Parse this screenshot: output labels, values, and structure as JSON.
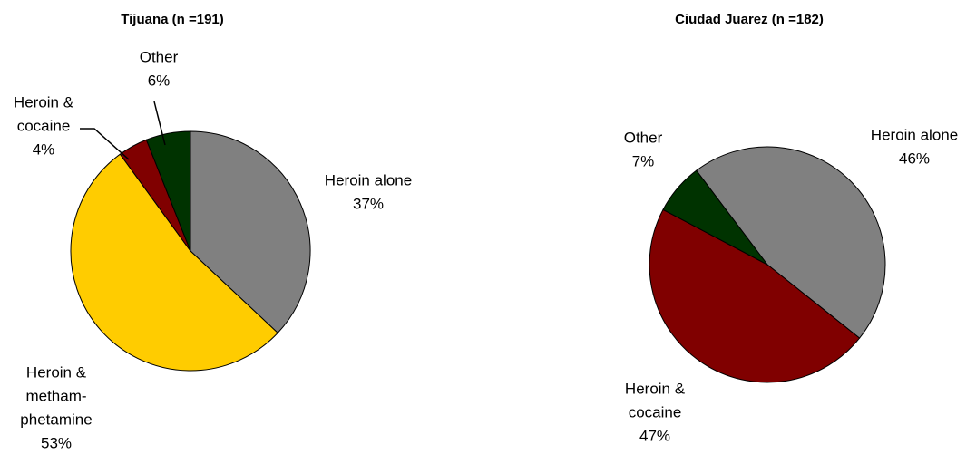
{
  "chart_data": [
    {
      "type": "pie",
      "title": "Tijuana (n =191)",
      "categories": [
        [
          "Heroin alone"
        ],
        [
          "Heroin &",
          "metham-",
          "phetamine"
        ],
        [
          "Heroin &",
          "cocaine"
        ],
        [
          "Other"
        ]
      ],
      "values": [
        37,
        53,
        4,
        6
      ],
      "value_labels": [
        "37%",
        "53%",
        "4%",
        "6%"
      ],
      "colors": [
        "#808080",
        "#ffcc00",
        "#800000",
        "#003300"
      ]
    },
    {
      "type": "pie",
      "title": "Ciudad Juarez (n =182)",
      "categories": [
        [
          "Heroin alone"
        ],
        [
          "Heroin &",
          "cocaine"
        ],
        [
          "Other"
        ]
      ],
      "values": [
        46,
        47,
        7
      ],
      "value_labels": [
        "46%",
        "47%",
        "7%"
      ],
      "colors": [
        "#808080",
        "#800000",
        "#003300"
      ]
    }
  ]
}
